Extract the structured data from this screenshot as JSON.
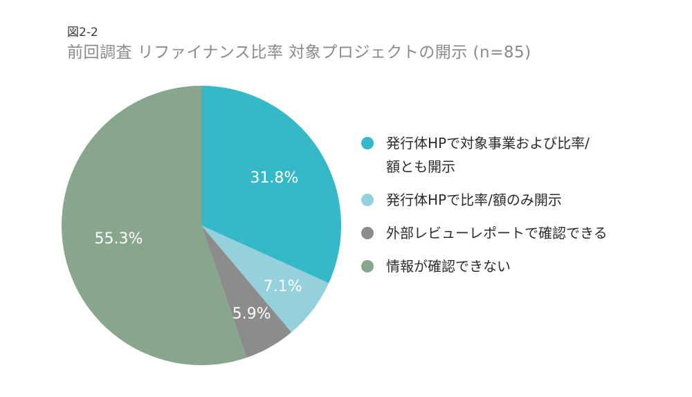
{
  "figure_number": "図2-2",
  "title": "前回調査 リファイナンス比率 対象プロジェクトの開示 (n=85)",
  "chart_data": {
    "type": "pie",
    "title": "前回調査 リファイナンス比率 対象プロジェクトの開示 (n=85)",
    "start_angle_deg": 0,
    "direction": "clockwise",
    "slices": [
      {
        "label": "発行体HPで対象事業および比率/額とも開示",
        "value": 31.8,
        "display": "31.8%",
        "color": "#35B8C7"
      },
      {
        "label": "発行体HPで比率/額のみ開示",
        "value": 7.1,
        "display": "7.1%",
        "color": "#95D1DC"
      },
      {
        "label": "外部レビューレポートで確認できる",
        "value": 5.9,
        "display": "5.9%",
        "color": "#8C8C8C"
      },
      {
        "label": "情報が確認できない",
        "value": 55.3,
        "display": "55.3%",
        "color": "#88A68C"
      }
    ]
  },
  "legend": {
    "items": [
      {
        "label_line1": "発行体HPで対象事業および比率/",
        "label_line2": "額とも開示",
        "color": "#35B8C7"
      },
      {
        "label_line1": "発行体HPで比率/額のみ開示",
        "label_line2": "",
        "color": "#95D1DC"
      },
      {
        "label_line1": "外部レビューレポートで確認できる",
        "label_line2": "",
        "color": "#8C8C8C"
      },
      {
        "label_line1": "情報が確認できない",
        "label_line2": "",
        "color": "#88A68C"
      }
    ]
  }
}
